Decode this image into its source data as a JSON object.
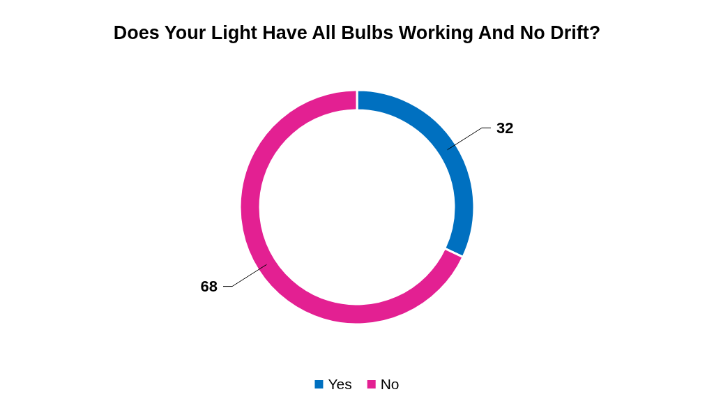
{
  "chart_data": {
    "type": "donut",
    "title": "Does Your Light Have All Bulbs Working And No Drift?",
    "categories": [
      "Yes",
      "No"
    ],
    "values": [
      32,
      68
    ],
    "colors": [
      "#0070c0",
      "#e32092"
    ],
    "data_labels": true,
    "legend": "bottom"
  }
}
